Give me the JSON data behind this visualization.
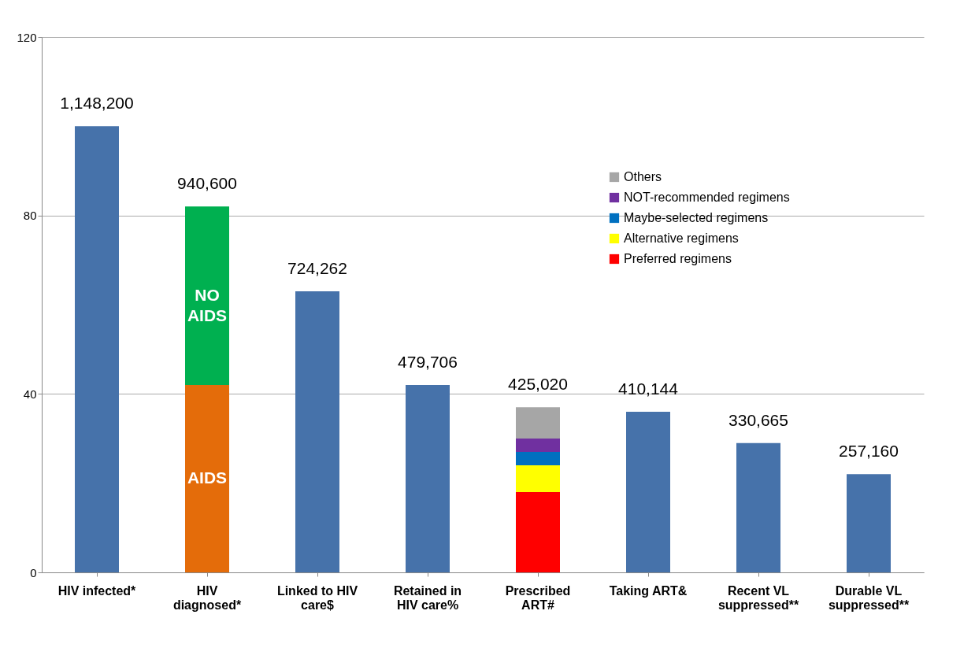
{
  "chart_data": {
    "type": "bar",
    "stacked": true,
    "categories": [
      "HIV infected*",
      "HIV diagnosed*",
      "Linked to HIV care$",
      "Retained in HIV care%",
      "Prescribed ART#",
      "Taking ART&",
      "Recent VL suppressed**",
      "Durable VL suppressed**"
    ],
    "series": [
      {
        "color": "#4672aa",
        "values": [
          100,
          null,
          63,
          42,
          null,
          36,
          29,
          22
        ]
      },
      {
        "name": "AIDS",
        "color": "#e46c0a",
        "values": [
          null,
          42,
          null,
          null,
          null,
          null,
          null,
          null
        ]
      },
      {
        "name": "NO AIDS",
        "color": "#00b050",
        "values": [
          null,
          40,
          null,
          null,
          null,
          null,
          null,
          null
        ]
      },
      {
        "name": "Preferred regimens",
        "color": "#ff0000",
        "values": [
          null,
          null,
          null,
          null,
          18,
          null,
          null,
          null
        ]
      },
      {
        "name": "Alternative regimens",
        "color": "#ffff00",
        "values": [
          null,
          null,
          null,
          null,
          6,
          null,
          null,
          null
        ]
      },
      {
        "name": "Maybe-selected regimens",
        "color": "#0070c0",
        "values": [
          null,
          null,
          null,
          null,
          3,
          null,
          null,
          null
        ]
      },
      {
        "name": "NOT-recommended regimens",
        "color": "#7030a0",
        "values": [
          null,
          null,
          null,
          null,
          3,
          null,
          null,
          null
        ]
      },
      {
        "name": "Others",
        "color": "#a6a6a6",
        "values": [
          null,
          null,
          null,
          null,
          7,
          null,
          null,
          null
        ]
      }
    ],
    "annotations": [
      {
        "text": "1,148,200",
        "x": "HIV infected*",
        "y": 100
      },
      {
        "text": "940,600",
        "x": "HIV diagnosed*",
        "y": 82
      },
      {
        "text": "724,262",
        "x": "Linked to HIV care$",
        "y": 63
      },
      {
        "text": "479,706",
        "x": "Retained in HIV care%",
        "y": 42
      },
      {
        "text": "425,020",
        "x": "Prescribed ART#",
        "y": 37
      },
      {
        "text": "410,144",
        "x": "Taking ART&",
        "y": 36
      },
      {
        "text": "330,665",
        "x": "Recent VL suppressed**",
        "y": 29
      },
      {
        "text": "257,160",
        "x": "Durable VL suppressed**",
        "y": 22
      }
    ],
    "ylim": [
      0,
      120
    ],
    "yticks": [
      0,
      40,
      80,
      120
    ],
    "grid": "y",
    "legend": "top right"
  }
}
